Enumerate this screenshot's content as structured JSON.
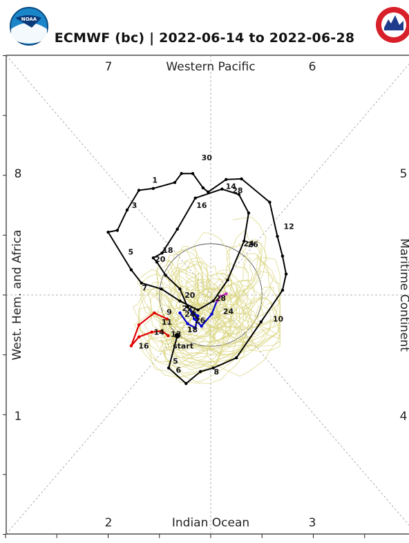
{
  "title": "ECMWF (bc) | 2022-06-14 to 2022-06-28",
  "logos": {
    "left": "noaa-logo",
    "right": "nws-logo"
  },
  "colors": {
    "observed": "#000000",
    "ensemble": "#d8d47a",
    "forecast_week1": "#e00000",
    "forecast_week2": "#0000cc",
    "forecast_tail": "#c020c0",
    "axes": "#9a9a9a",
    "circle": "#555555"
  },
  "chart_data": {
    "type": "line",
    "title": "ECMWF (bc) | 2022-06-14 to 2022-06-28",
    "xlim": [
      -4,
      4
    ],
    "ylim": [
      -4,
      4
    ],
    "grid": true,
    "unit_circle_radius": 1,
    "phase_labels": [
      {
        "text": "1",
        "pos": "left-lower"
      },
      {
        "text": "2",
        "pos": "bottom-left"
      },
      {
        "text": "3",
        "pos": "bottom-right"
      },
      {
        "text": "4",
        "pos": "right-lower"
      },
      {
        "text": "5",
        "pos": "right-upper"
      },
      {
        "text": "6",
        "pos": "top-right"
      },
      {
        "text": "7",
        "pos": "top-left"
      },
      {
        "text": "8",
        "pos": "left-upper"
      }
    ],
    "region_labels": {
      "top": "Western Pacific",
      "bottom": "Indian Ocean",
      "left": "West. Hem. and Africa",
      "right": "Maritime Continent"
    },
    "observed": {
      "x": [
        -0.65,
        -0.82,
        -0.48,
        -0.2,
        0.05,
        0.5,
        0.98,
        1.4,
        1.47,
        1.4,
        1.3,
        1.15,
        0.6,
        0.3,
        -0.05,
        -0.15,
        -0.35,
        -0.57,
        -0.7,
        -1.12,
        -1.4,
        -1.63,
        -1.82,
        -2.0,
        -1.55,
        -1.35,
        -0.96,
        -0.6,
        -0.25,
        0.05,
        0.33,
        0.65,
        0.74,
        0.55,
        0.22,
        -0.3,
        -0.65,
        -0.95,
        -1.12,
        -1.05,
        -0.88,
        -0.6,
        -0.45,
        -0.25
      ],
      "y": [
        -0.68,
        -1.22,
        -1.48,
        -1.28,
        -1.22,
        -1.05,
        -0.45,
        0.08,
        0.35,
        0.65,
        0.98,
        1.55,
        1.94,
        1.93,
        1.72,
        1.79,
        2.03,
        2.03,
        1.88,
        1.78,
        1.75,
        1.42,
        1.08,
        1.05,
        0.42,
        0.2,
        0.1,
        -0.1,
        -0.25,
        -0.1,
        0.25,
        0.9,
        1.37,
        1.68,
        1.77,
        1.62,
        1.1,
        0.7,
        0.62,
        0.55,
        0.33,
        0.1,
        -0.2,
        -0.4
      ],
      "day_labels": [
        {
          "text": "start",
          "x": -0.78,
          "y": -0.85
        },
        {
          "text": "5",
          "x": -0.78,
          "y": -1.1
        },
        {
          "text": "6",
          "x": -0.72,
          "y": -1.25
        },
        {
          "text": "8",
          "x": 0.02,
          "y": -1.28
        },
        {
          "text": "10",
          "x": 1.17,
          "y": -0.4
        },
        {
          "text": "12",
          "x": 1.38,
          "y": 1.15
        },
        {
          "text": "24",
          "x": 0.6,
          "y": 0.86
        },
        {
          "text": "26",
          "x": 0.68,
          "y": 0.85
        },
        {
          "text": "28",
          "x": 0.38,
          "y": 1.75
        },
        {
          "text": "14",
          "x": 0.25,
          "y": 1.82
        },
        {
          "text": "16",
          "x": -0.32,
          "y": 1.5
        },
        {
          "text": "18",
          "x": -0.98,
          "y": 0.75
        },
        {
          "text": "20",
          "x": -1.13,
          "y": 0.6
        },
        {
          "text": "30",
          "x": -0.22,
          "y": 2.3
        },
        {
          "text": "1",
          "x": -1.18,
          "y": 1.92
        },
        {
          "text": "3",
          "x": -1.58,
          "y": 1.5
        },
        {
          "text": "5",
          "x": -1.65,
          "y": 0.72
        },
        {
          "text": "7",
          "x": -1.38,
          "y": 0.12
        },
        {
          "text": "9",
          "x": -0.9,
          "y": -0.28
        },
        {
          "text": "11",
          "x": -1.0,
          "y": -0.45
        },
        {
          "text": "13",
          "x": -0.82,
          "y": -0.65
        },
        {
          "text": "14",
          "x": -1.15,
          "y": -0.62
        },
        {
          "text": "16",
          "x": -1.45,
          "y": -0.85
        },
        {
          "text": "18",
          "x": -0.5,
          "y": -0.58
        },
        {
          "text": "20",
          "x": -0.55,
          "y": 0.0
        },
        {
          "text": "22",
          "x": -0.6,
          "y": -0.22
        },
        {
          "text": "24",
          "x": -0.55,
          "y": -0.32
        },
        {
          "text": "26",
          "x": -0.35,
          "y": -0.42
        },
        {
          "text": "28",
          "x": 0.05,
          "y": -0.05
        },
        {
          "text": "24",
          "x": 0.2,
          "y": -0.27
        },
        {
          "text": "2",
          "x": -0.42,
          "y": -0.25
        }
      ]
    },
    "forecast": {
      "week1": {
        "x": [
          -0.83,
          -0.95,
          -1.15,
          -1.4,
          -1.55,
          -1.4,
          -1.1,
          -0.85
        ],
        "y": [
          -0.68,
          -0.6,
          -0.62,
          -0.7,
          -0.85,
          -0.5,
          -0.3,
          -0.4
        ]
      },
      "week2": {
        "x": [
          -0.6,
          -0.45,
          -0.3,
          -0.25,
          -0.4,
          -0.32,
          -0.18,
          0.02,
          0.12
        ],
        "y": [
          -0.3,
          -0.48,
          -0.55,
          -0.35,
          -0.25,
          -0.4,
          -0.52,
          -0.32,
          -0.1
        ]
      },
      "tail": {
        "x": [
          0.12,
          0.2,
          0.3
        ],
        "y": [
          -0.1,
          -0.02,
          0.02
        ]
      }
    }
  }
}
